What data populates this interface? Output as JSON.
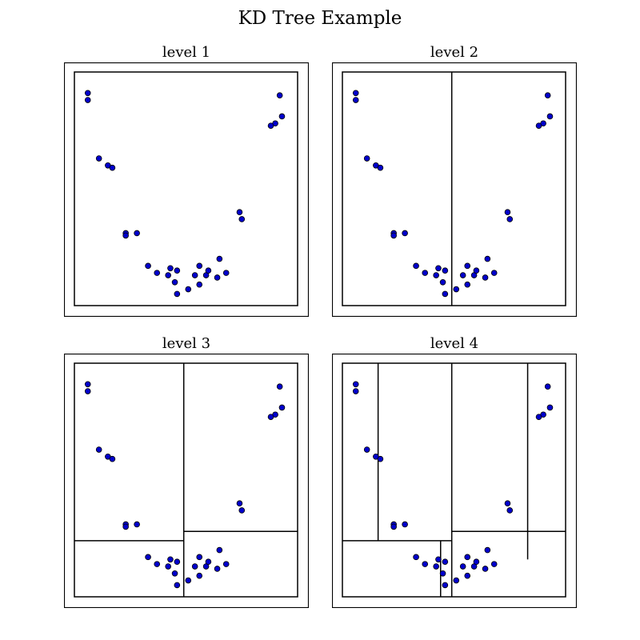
{
  "figure": {
    "title": "KD Tree Example"
  },
  "chart_data": {
    "type": "scatter",
    "title": "KD Tree Example",
    "xlim": [
      0,
      1
    ],
    "ylim": [
      0,
      1
    ],
    "marker_color": "#0000cc",
    "marker_edge": "#000000",
    "line_color": "#000000",
    "points": [
      [
        0.06,
        0.91
      ],
      [
        0.06,
        0.88
      ],
      [
        0.92,
        0.9
      ],
      [
        0.93,
        0.81
      ],
      [
        0.9,
        0.78
      ],
      [
        0.88,
        0.77
      ],
      [
        0.11,
        0.63
      ],
      [
        0.15,
        0.6
      ],
      [
        0.17,
        0.59
      ],
      [
        0.23,
        0.31
      ],
      [
        0.23,
        0.3
      ],
      [
        0.28,
        0.31
      ],
      [
        0.74,
        0.4
      ],
      [
        0.75,
        0.37
      ],
      [
        0.33,
        0.17
      ],
      [
        0.37,
        0.14
      ],
      [
        0.42,
        0.13
      ],
      [
        0.43,
        0.16
      ],
      [
        0.46,
        0.15
      ],
      [
        0.45,
        0.1
      ],
      [
        0.46,
        0.05
      ],
      [
        0.51,
        0.07
      ],
      [
        0.54,
        0.13
      ],
      [
        0.56,
        0.17
      ],
      [
        0.56,
        0.09
      ],
      [
        0.59,
        0.13
      ],
      [
        0.6,
        0.15
      ],
      [
        0.64,
        0.12
      ],
      [
        0.65,
        0.2
      ],
      [
        0.68,
        0.14
      ]
    ],
    "panels": [
      {
        "title": "level 1",
        "splits": []
      },
      {
        "title": "level 2",
        "splits": [
          {
            "axis": "x",
            "at": 0.49,
            "from": 0,
            "to": 1
          }
        ]
      },
      {
        "title": "level 3",
        "splits": [
          {
            "axis": "x",
            "at": 0.49,
            "from": 0,
            "to": 1
          },
          {
            "axis": "y",
            "at": 0.24,
            "from": 0,
            "to": 0.49
          },
          {
            "axis": "y",
            "at": 0.28,
            "from": 0.49,
            "to": 1
          }
        ]
      },
      {
        "title": "level 4",
        "splits": [
          {
            "axis": "x",
            "at": 0.49,
            "from": 0,
            "to": 1
          },
          {
            "axis": "y",
            "at": 0.24,
            "from": 0,
            "to": 0.49
          },
          {
            "axis": "y",
            "at": 0.28,
            "from": 0.49,
            "to": 1
          },
          {
            "axis": "x",
            "at": 0.16,
            "from": 0.24,
            "to": 1
          },
          {
            "axis": "x",
            "at": 0.44,
            "from": 0,
            "to": 0.24
          },
          {
            "axis": "x",
            "at": 0.83,
            "from": 0.16,
            "to": 0.28
          },
          {
            "axis": "x",
            "at": 0.83,
            "from": 0.28,
            "to": 1
          }
        ]
      }
    ]
  }
}
